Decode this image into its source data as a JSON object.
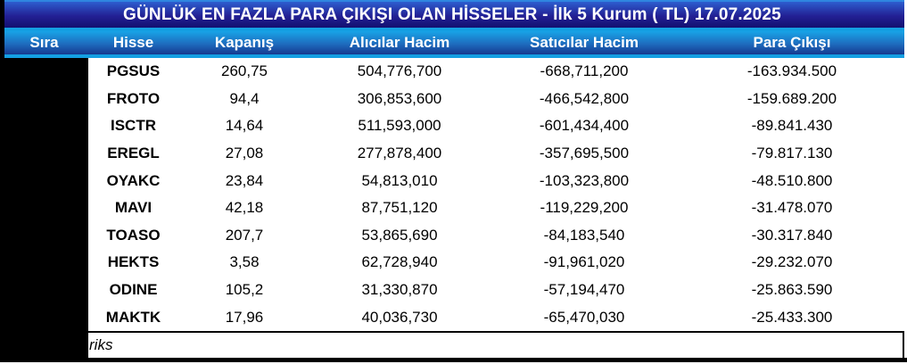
{
  "header": {
    "title": "GÜNLÜK EN FAZLA PARA ÇIKIŞI OLAN HİSSELER - İlk 5 Kurum ( TL) 17.07.2025"
  },
  "table": {
    "columns": [
      "Sıra",
      "Hisse",
      "Kapanış",
      "Alıcılar Hacim",
      "Satıcılar Hacim",
      "Para Çıkışı"
    ],
    "rows": [
      {
        "sira": "",
        "hisse": "PGSUS",
        "kapanis": "260,75",
        "alicilar": "504,776,700",
        "saticilar": "-668,711,200",
        "para_cikisi": "-163.934.500"
      },
      {
        "sira": "",
        "hisse": "FROTO",
        "kapanis": "94,4",
        "alicilar": "306,853,600",
        "saticilar": "-466,542,800",
        "para_cikisi": "-159.689.200"
      },
      {
        "sira": "",
        "hisse": "ISCTR",
        "kapanis": "14,64",
        "alicilar": "511,593,000",
        "saticilar": "-601,434,400",
        "para_cikisi": "-89.841.430"
      },
      {
        "sira": "",
        "hisse": "EREGL",
        "kapanis": "27,08",
        "alicilar": "277,878,400",
        "saticilar": "-357,695,500",
        "para_cikisi": "-79.817.130"
      },
      {
        "sira": "",
        "hisse": "OYAKC",
        "kapanis": "23,84",
        "alicilar": "54,813,010",
        "saticilar": "-103,323,800",
        "para_cikisi": "-48.510.800"
      },
      {
        "sira": "",
        "hisse": "MAVI",
        "kapanis": "42,18",
        "alicilar": "87,751,120",
        "saticilar": "-119,229,200",
        "para_cikisi": "-31.478.070"
      },
      {
        "sira": "",
        "hisse": "TOASO",
        "kapanis": "207,7",
        "alicilar": "53,865,690",
        "saticilar": "-84,183,540",
        "para_cikisi": "-30.317.840"
      },
      {
        "sira": "",
        "hisse": "HEKTS",
        "kapanis": "3,58",
        "alicilar": "62,728,940",
        "saticilar": "-91,961,020",
        "para_cikisi": "-29.232.070"
      },
      {
        "sira": "",
        "hisse": "ODINE",
        "kapanis": "105,2",
        "alicilar": "31,330,870",
        "saticilar": "-57,194,470",
        "para_cikisi": "-25.863.590"
      },
      {
        "sira": "",
        "hisse": "MAKTK",
        "kapanis": "17,96",
        "alicilar": "40,036,730",
        "saticilar": "-65,470,030",
        "para_cikisi": "-25.433.300"
      }
    ]
  },
  "footer": {
    "source_visible_text": "riks"
  },
  "overlays": {
    "sira_column_redacted": true,
    "source_text_partially_covered": true
  },
  "colors": {
    "title_gradient_top": "#2d5ecf",
    "title_gradient_bottom": "#131070",
    "header_gradient_top": "#18a3e6",
    "header_gradient_bottom": "#15398f",
    "separator_blue": "#149fe2",
    "header_text": "#ffffff",
    "body_text": "#000000",
    "redaction_box": "#000000"
  },
  "chart_data": {
    "type": "table",
    "title": "GÜNLÜK EN FAZLA PARA ÇIKIŞI OLAN HİSSELER - İlk 5 Kurum ( TL) 17.07.2025",
    "columns": [
      "Sıra",
      "Hisse",
      "Kapanış",
      "Alıcılar Hacim",
      "Satıcılar Hacim",
      "Para Çıkışı"
    ],
    "rows": [
      [
        "",
        "PGSUS",
        "260,75",
        "504,776,700",
        "-668,711,200",
        "-163.934.500"
      ],
      [
        "",
        "FROTO",
        "94,4",
        "306,853,600",
        "-466,542,800",
        "-159.689.200"
      ],
      [
        "",
        "ISCTR",
        "14,64",
        "511,593,000",
        "-601,434,400",
        "-89.841.430"
      ],
      [
        "",
        "EREGL",
        "27,08",
        "277,878,400",
        "-357,695,500",
        "-79.817.130"
      ],
      [
        "",
        "OYAKC",
        "23,84",
        "54,813,010",
        "-103,323,800",
        "-48.510.800"
      ],
      [
        "",
        "MAVI",
        "42,18",
        "87,751,120",
        "-119,229,200",
        "-31.478.070"
      ],
      [
        "",
        "TOASO",
        "207,7",
        "53,865,690",
        "-84,183,540",
        "-30.317.840"
      ],
      [
        "",
        "HEKTS",
        "3,58",
        "62,728,940",
        "-91,961,020",
        "-29.232.070"
      ],
      [
        "",
        "ODINE",
        "105,2",
        "31,330,870",
        "-57,194,470",
        "-25.863.590"
      ],
      [
        "",
        "MAKTK",
        "17,96",
        "40,036,730",
        "-65,470,030",
        "-25.433.300"
      ]
    ],
    "legend_position": "none",
    "grid": false
  }
}
